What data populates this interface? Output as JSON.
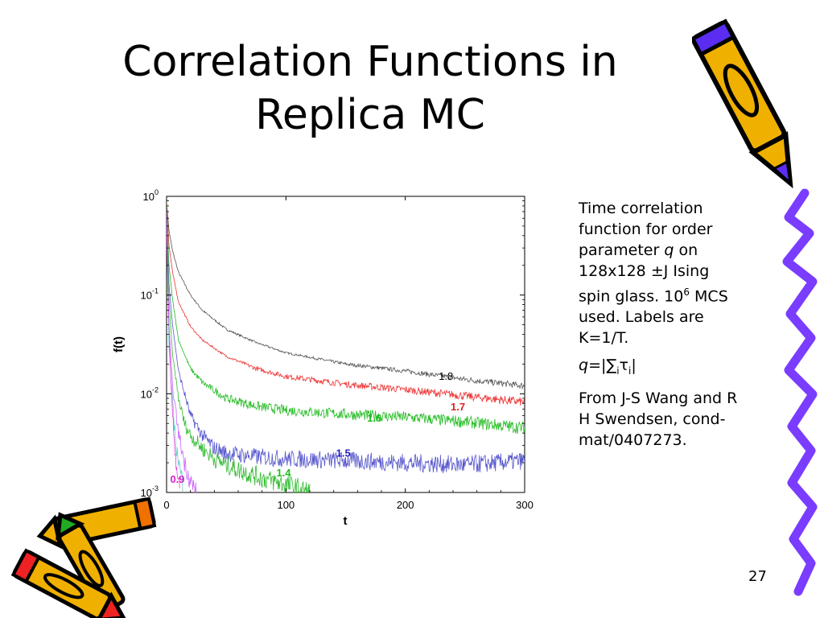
{
  "slide": {
    "title_line1": "Correlation Functions in",
    "title_line2": "Replica MC",
    "page_number": "27"
  },
  "sidebar": {
    "p1_a": "Time correlation function for order parameter ",
    "p1_q": "q",
    "p1_b": " on 128x128 ±J Ising spin glass. 10",
    "p1_sup": "6",
    "p1_c": " MCS used. Labels are K=1/T.",
    "p2_q": "q",
    "p2_a": "=|∑",
    "p2_sub1": "i",
    "p2_tau": "τ",
    "p2_sub2": "i",
    "p2_b": "|",
    "p3": "From J-S Wang and R H Swendsen, cond-mat/0407273."
  },
  "chart_data": {
    "type": "line",
    "xlabel": "t",
    "ylabel": "f(t)",
    "xlim": [
      0,
      300
    ],
    "ylim": [
      0.001,
      1
    ],
    "y_scale": "log",
    "x_ticks": [
      "0",
      "100",
      "200",
      "300"
    ],
    "y_ticks": [
      {
        "base": "10",
        "exp": "0",
        "value": 1
      },
      {
        "base": "10",
        "exp": "-1",
        "value": 0.1
      },
      {
        "base": "10",
        "exp": "-2",
        "value": 0.01
      },
      {
        "base": "10",
        "exp": "-3",
        "value": 0.001
      }
    ],
    "grid": false,
    "series": [
      {
        "label": "1.8",
        "color": "#555555",
        "label_color": "#000000",
        "label_at": [
          228,
          0.0138
        ],
        "x": [
          0,
          2,
          5,
          10,
          20,
          30,
          50,
          75,
          100,
          150,
          200,
          250,
          300
        ],
        "y": [
          0.9,
          0.45,
          0.28,
          0.17,
          0.1,
          0.07,
          0.045,
          0.033,
          0.026,
          0.02,
          0.017,
          0.014,
          0.012
        ]
      },
      {
        "label": "1.7",
        "color": "#ee3333",
        "label_color": "#dd2222",
        "label_at": [
          238,
          0.0068
        ],
        "x": [
          0,
          2,
          5,
          10,
          20,
          30,
          50,
          75,
          100,
          150,
          200,
          250,
          300
        ],
        "y": [
          0.85,
          0.32,
          0.17,
          0.085,
          0.048,
          0.035,
          0.024,
          0.018,
          0.015,
          0.0125,
          0.011,
          0.0095,
          0.0082
        ]
      },
      {
        "label": "1.6",
        "color": "#22bb22",
        "label_color": "#22bb22",
        "label_at": [
          168,
          0.0052
        ],
        "x": [
          0,
          2,
          5,
          10,
          20,
          30,
          50,
          75,
          100,
          150,
          200,
          250,
          300
        ],
        "y": [
          0.8,
          0.2,
          0.09,
          0.035,
          0.018,
          0.013,
          0.009,
          0.0075,
          0.0068,
          0.0062,
          0.0058,
          0.0052,
          0.0045
        ]
      },
      {
        "label": "1.5",
        "color": "#5555cc",
        "label_color": "#2222bb",
        "label_at": [
          142,
          0.0023
        ],
        "x": [
          0,
          2,
          5,
          10,
          20,
          30,
          40,
          50,
          75,
          100,
          150,
          200,
          250,
          300
        ],
        "y": [
          0.75,
          0.13,
          0.05,
          0.017,
          0.006,
          0.0038,
          0.0028,
          0.0025,
          0.0023,
          0.0022,
          0.0021,
          0.002,
          0.0019,
          0.0021
        ]
      },
      {
        "label": "1.4",
        "color": "#33bb33",
        "label_color": "#22bb22",
        "label_at": [
          92,
          0.00145
        ],
        "x": [
          0,
          2,
          5,
          10,
          15,
          20,
          30,
          40,
          50,
          60,
          80,
          100,
          120
        ],
        "y": [
          0.7,
          0.09,
          0.025,
          0.009,
          0.005,
          0.0038,
          0.0028,
          0.0022,
          0.0019,
          0.0017,
          0.0014,
          0.0012,
          0.001
        ]
      },
      {
        "label": "",
        "color": "#cc66ff",
        "label_color": "#cc66ff",
        "label_at": null,
        "x": [
          0,
          2,
          5,
          10,
          15,
          20,
          25
        ],
        "y": [
          0.7,
          0.05,
          0.012,
          0.004,
          0.002,
          0.0013,
          0.001
        ]
      },
      {
        "label": "",
        "color": "#66cccc",
        "label_color": "#66cccc",
        "label_at": null,
        "x": [
          0,
          2,
          5,
          8,
          12,
          16
        ],
        "y": [
          0.7,
          0.03,
          0.008,
          0.003,
          0.0015,
          0.001
        ]
      },
      {
        "label": "0.9",
        "color": "#dd44dd",
        "label_color": "#dd22cc",
        "label_at": [
          3,
          0.00125
        ],
        "x": [
          0,
          1,
          3,
          5,
          8,
          11
        ],
        "y": [
          0.7,
          0.12,
          0.02,
          0.006,
          0.002,
          0.001
        ]
      }
    ],
    "noise_seed": 7
  }
}
